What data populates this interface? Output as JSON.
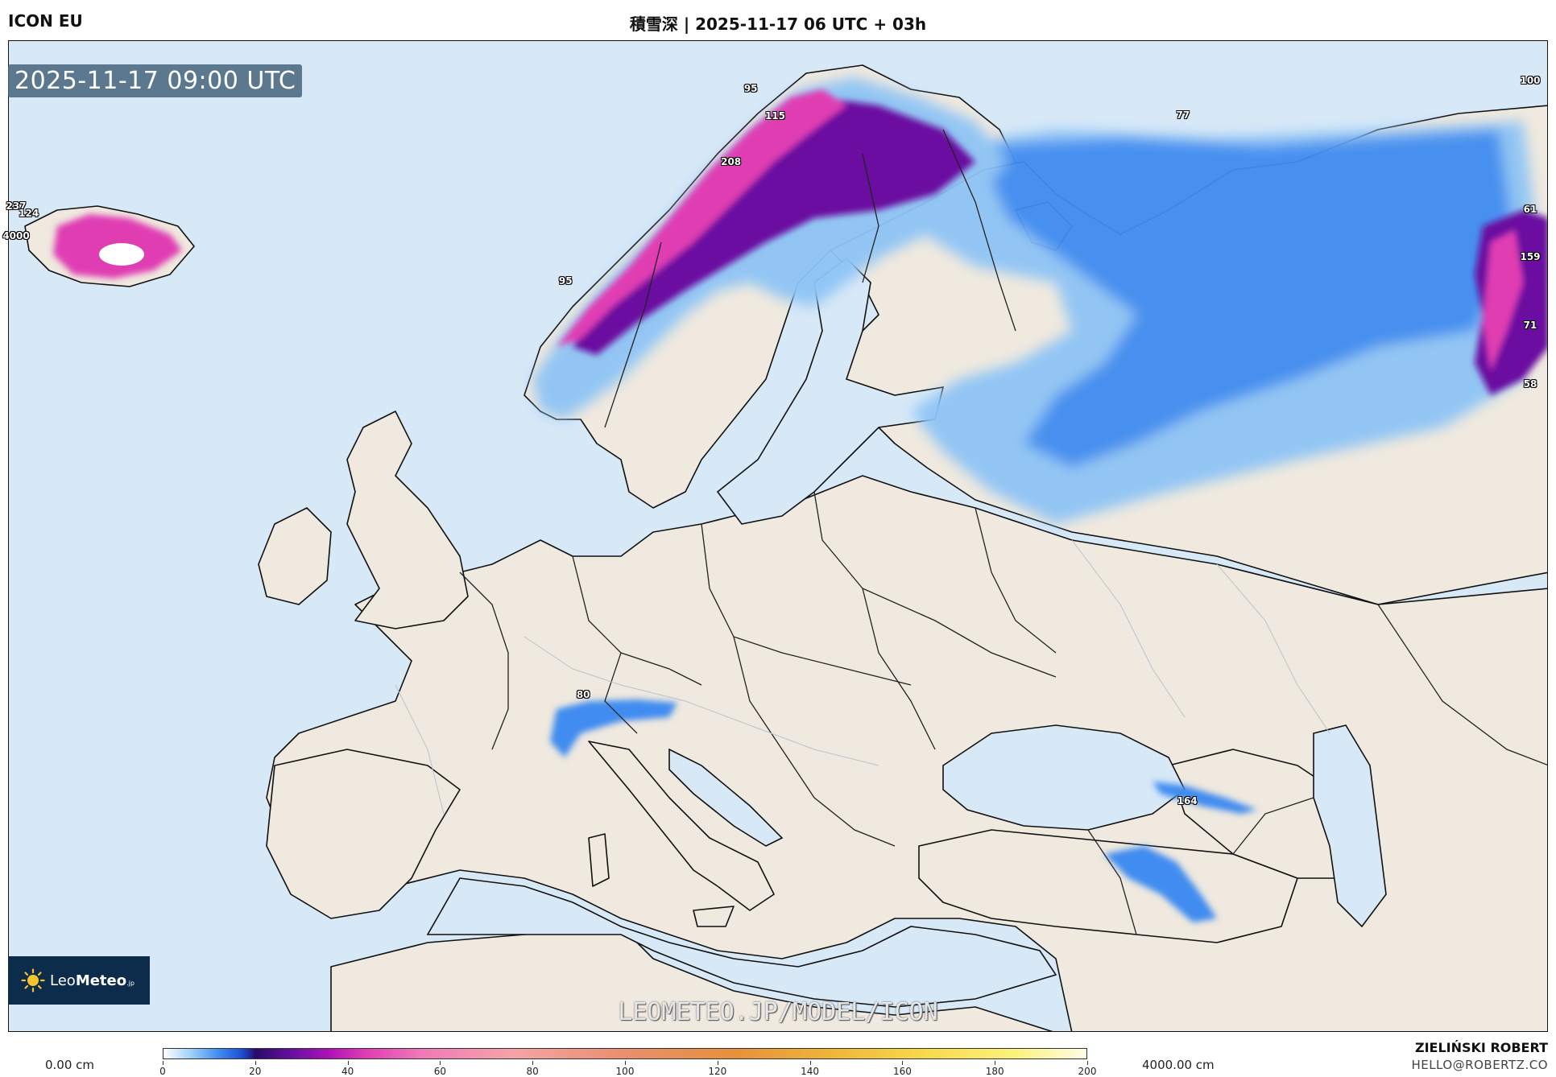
{
  "header": {
    "model": "ICON EU",
    "title": "積雪深 | 2025-11-17 06 UTC + 03h"
  },
  "map": {
    "valid_time": "2025-11-17 09:00 UTC",
    "watermark": "LEOMETEO.JP/MODEL/ICON",
    "colors": {
      "sea": "#d7e8f7",
      "land": "#efe9df",
      "coast": "#111111",
      "snow_light": "#8ec4f5",
      "snow_mid": "#2f7fea",
      "snow_deep": "#6a0fa0",
      "snow_extreme": "#e03eb3"
    },
    "value_labels": [
      {
        "text": "95",
        "lon": 14.5,
        "lat": 68.9
      },
      {
        "text": "115",
        "lon": 15.5,
        "lat": 67.9
      },
      {
        "text": "208",
        "lon": 13.9,
        "lat": 66.1
      },
      {
        "text": "95",
        "lon": 7.2,
        "lat": 61.6
      },
      {
        "text": "237",
        "lon": -22.5,
        "lat": 65.5
      },
      {
        "text": "124",
        "lon": -14.2,
        "lat": 64.9
      },
      {
        "text": "4000",
        "lon": -18.4,
        "lat": 64.2
      },
      {
        "text": "77",
        "lon": 31.0,
        "lat": 68.5
      },
      {
        "text": "100",
        "lon": 58.5,
        "lat": 70.8
      },
      {
        "text": "61",
        "lon": 60.4,
        "lat": 66.0
      },
      {
        "text": "159",
        "lon": 59.6,
        "lat": 64.2
      },
      {
        "text": "71",
        "lon": 59.2,
        "lat": 61.6
      },
      {
        "text": "58",
        "lon": 59.6,
        "lat": 59.4
      },
      {
        "text": "80",
        "lon": 7.3,
        "lat": 46.0
      },
      {
        "text": "164",
        "lon": 42.6,
        "lat": 43.1
      }
    ]
  },
  "logo": {
    "brand_light": "Leo",
    "brand_bold": "Meteo",
    "suffix": ".jp"
  },
  "legend": {
    "min_label": "0.00 cm",
    "max_label": "4000.00 cm",
    "ticks": [
      "0",
      "20",
      "40",
      "60",
      "80",
      "100",
      "120",
      "140",
      "160",
      "180",
      "200"
    ]
  },
  "credit": {
    "author": "ZIELIŃSKI ROBERT",
    "email": "HELLO@ROBERTZ.CO"
  }
}
